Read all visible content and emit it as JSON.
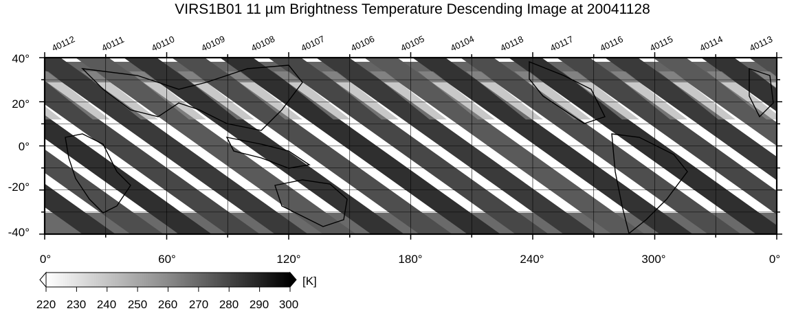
{
  "title": "VIRS1B01 11 µm Brightness Temperature Descending Image at 20041128",
  "orbit_labels": [
    "40112",
    "40111",
    "40110",
    "40109",
    "40108",
    "40107",
    "40106",
    "40105",
    "40104",
    "40118",
    "40117",
    "40116",
    "40115",
    "40114",
    "40113"
  ],
  "map": {
    "projection": "equirectangular",
    "lon_range": [
      0,
      360
    ],
    "lat_range": [
      -40,
      40
    ],
    "grid": true,
    "lon_tick_labels": [
      "0°",
      "60°",
      "120°",
      "180°",
      "240°",
      "300°",
      "0°"
    ],
    "lat_tick_labels": [
      "40°",
      "20°",
      "0°",
      "-20°",
      "-40°"
    ]
  },
  "colorbar": {
    "unit_label": "[K]",
    "min": 220,
    "max": 300,
    "tick_labels": [
      "220",
      "230",
      "240",
      "250",
      "260",
      "270",
      "280",
      "290",
      "300"
    ],
    "colors": {
      "low": "#ffffff",
      "high": "#000000"
    }
  }
}
